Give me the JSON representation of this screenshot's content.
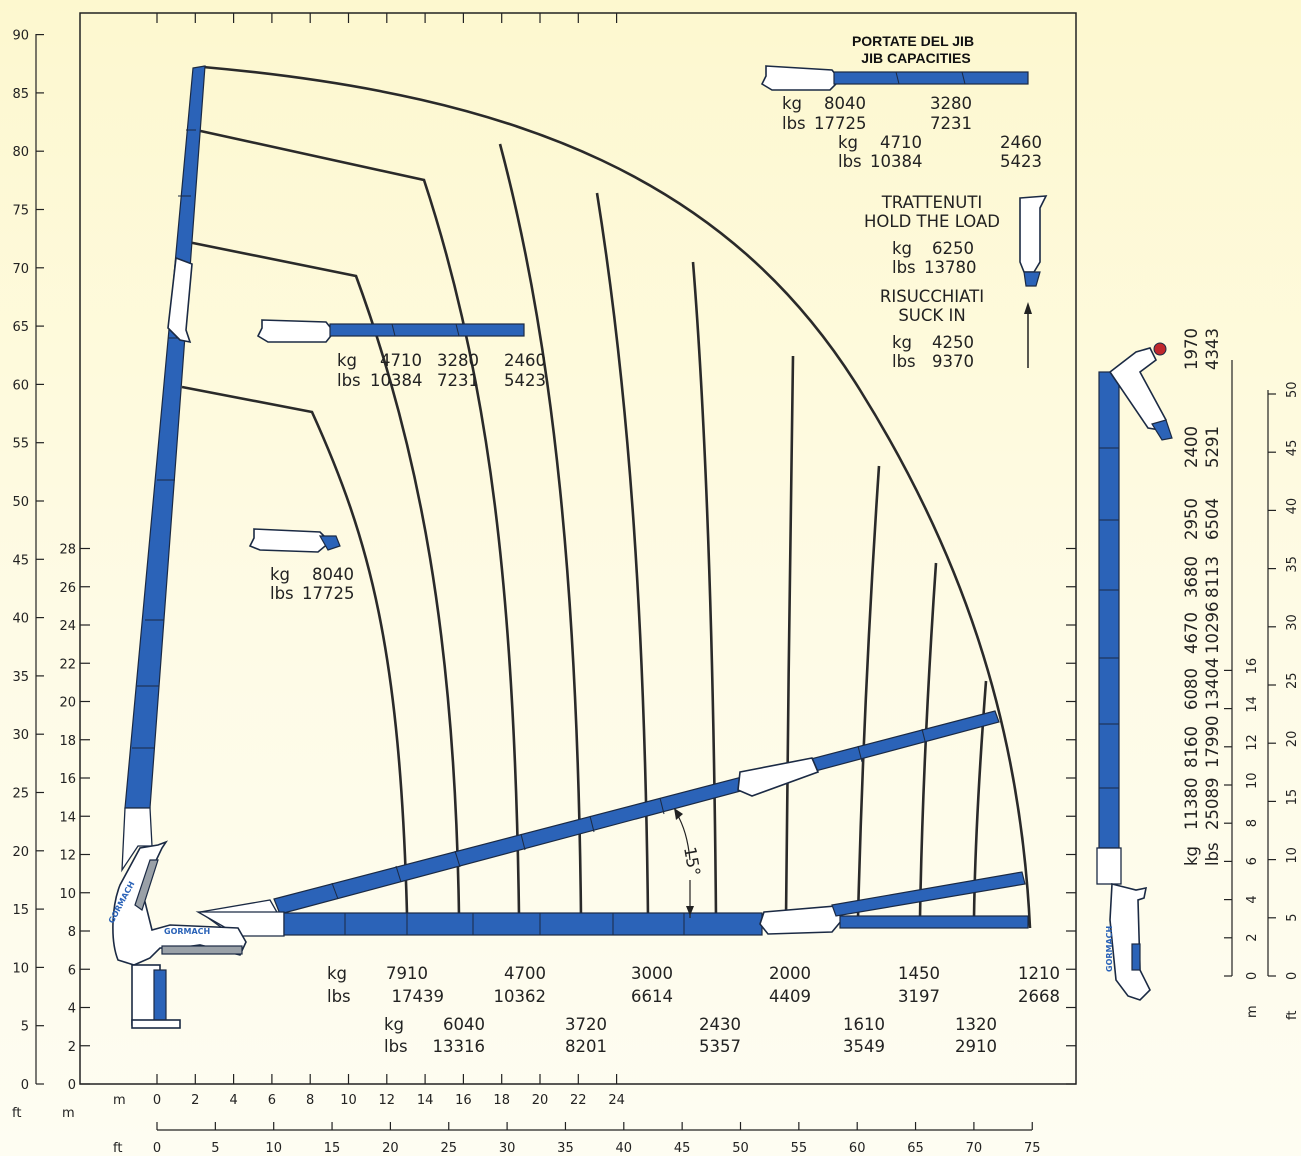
{
  "axes": {
    "left_ft": {
      "label": "ft",
      "ticks": [
        "0",
        "5",
        "10",
        "15",
        "20",
        "25",
        "30",
        "35",
        "40",
        "45",
        "50",
        "55",
        "60",
        "65",
        "70",
        "75",
        "80",
        "85",
        "90"
      ]
    },
    "left_m": {
      "label": "m",
      "ticks": [
        "0",
        "2",
        "4",
        "6",
        "8",
        "10",
        "12",
        "14",
        "16",
        "18",
        "20",
        "22",
        "24",
        "26",
        "28"
      ]
    },
    "bottom_m": {
      "label": "m",
      "ticks": [
        "0",
        "2",
        "4",
        "6",
        "8",
        "10",
        "12",
        "14",
        "16",
        "18",
        "20",
        "22",
        "24"
      ]
    },
    "bottom_ft": {
      "label": "ft",
      "ticks": [
        "0",
        "5",
        "10",
        "15",
        "20",
        "25",
        "30",
        "35",
        "40",
        "45",
        "50",
        "55",
        "60",
        "65",
        "70",
        "75"
      ]
    },
    "right_m": {
      "label": "m",
      "ticks": [
        "0",
        "2",
        "4",
        "6",
        "8",
        "10",
        "12",
        "14",
        "16"
      ]
    },
    "right_ft": {
      "label": "ft",
      "ticks": [
        "0",
        "5",
        "10",
        "15",
        "20",
        "25",
        "30",
        "35",
        "40",
        "45",
        "50"
      ]
    }
  },
  "jib_capacities": {
    "title1": "PORTATE DEL JIB",
    "title2": "JIB CAPACITIES",
    "row1_kg_label": "kg",
    "row1_kg1": "8040",
    "row1_kg2": "3280",
    "row1_lbs_label": "lbs",
    "row1_lbs1": "17725",
    "row1_lbs2": "7231",
    "row2_kg_label": "kg",
    "row2_kg1": "4710",
    "row2_kg2": "2460",
    "row2_lbs_label": "lbs",
    "row2_lbs1": "10384",
    "row2_lbs2": "5423"
  },
  "hold_load": {
    "it": "TRATTENUTI",
    "en": "HOLD THE LOAD",
    "kg_label": "kg",
    "kg": "6250",
    "lbs_label": "lbs",
    "lbs": "13780"
  },
  "suck_in": {
    "it": "RISUCCHIATI",
    "en": "SUCK IN",
    "kg_label": "kg",
    "kg": "4250",
    "lbs_label": "lbs",
    "lbs": "9370"
  },
  "jib_mid": {
    "kg_label": "kg",
    "kg": [
      "4710",
      "3280",
      "2460"
    ],
    "lbs_label": "lbs",
    "lbs": [
      "10384",
      "7231",
      "5423"
    ]
  },
  "jib_short": {
    "kg_label": "kg",
    "kg": "8040",
    "lbs_label": "lbs",
    "lbs": "17725"
  },
  "angle_label": "15°",
  "bottom_row1": {
    "kg_label": "kg",
    "lbs_label": "lbs",
    "kg": [
      "7910",
      "4700",
      "3000",
      "2000",
      "1450",
      "1210"
    ],
    "lbs": [
      "17439",
      "10362",
      "6614",
      "4409",
      "3197",
      "2668"
    ]
  },
  "bottom_row2": {
    "kg_label": "kg",
    "lbs_label": "lbs",
    "kg": [
      "6040",
      "3720",
      "2430",
      "1610",
      "1320"
    ],
    "lbs": [
      "13316",
      "8201",
      "5357",
      "3549",
      "2910"
    ]
  },
  "vertical_capacities": {
    "kg_label": "kg",
    "lbs_label": "lbs",
    "kg": [
      "11380",
      "8160",
      "6080",
      "4670",
      "3680",
      "2950",
      "2400",
      "1970"
    ],
    "lbs": [
      "25089",
      "17990",
      "13404",
      "10296",
      "8113",
      "6504",
      "5291",
      "4343"
    ]
  },
  "brand": "GORMACH",
  "chart_data": {
    "type": "diagram",
    "x_axis_m_range": [
      0,
      24
    ],
    "y_axis_m_range": [
      0,
      28
    ],
    "outer_envelope_reach_m": 22.8,
    "max_height_m": 26.6,
    "boom_angle_deg": 15,
    "capacity_points_horizontal": [
      {
        "kg": 7910,
        "lbs": 17439
      },
      {
        "kg": 4700,
        "lbs": 10362
      },
      {
        "kg": 3000,
        "lbs": 6614
      },
      {
        "kg": 2000,
        "lbs": 4409
      },
      {
        "kg": 1450,
        "lbs": 3197
      },
      {
        "kg": 1210,
        "lbs": 2668
      }
    ],
    "capacity_points_horizontal_2": [
      {
        "kg": 6040,
        "lbs": 13316
      },
      {
        "kg": 3720,
        "lbs": 8201
      },
      {
        "kg": 2430,
        "lbs": 5357
      },
      {
        "kg": 1610,
        "lbs": 3549
      },
      {
        "kg": 1320,
        "lbs": 2910
      }
    ],
    "capacity_points_vertical": [
      {
        "kg": 11380,
        "lbs": 25089
      },
      {
        "kg": 8160,
        "lbs": 17990
      },
      {
        "kg": 6080,
        "lbs": 13404
      },
      {
        "kg": 4670,
        "lbs": 10296
      },
      {
        "kg": 3680,
        "lbs": 8113
      },
      {
        "kg": 2950,
        "lbs": 6504
      },
      {
        "kg": 2400,
        "lbs": 5291
      },
      {
        "kg": 1970,
        "lbs": 4343
      }
    ]
  }
}
